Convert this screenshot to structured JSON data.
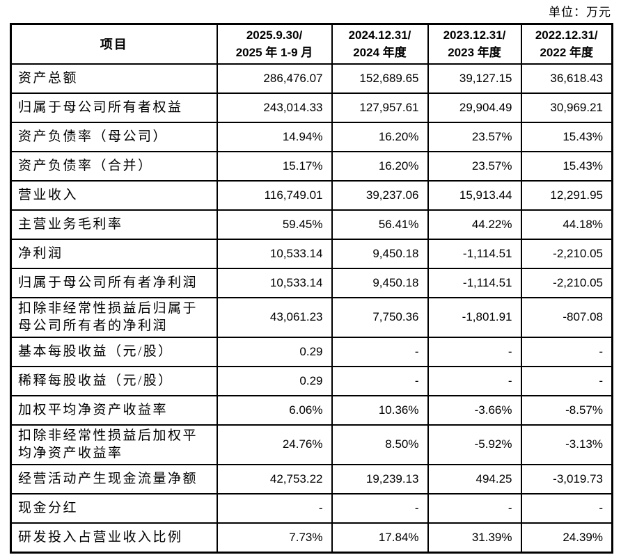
{
  "unit_label": "单位：万元",
  "colors": {
    "text": "#000000",
    "border": "#000000",
    "background": "#ffffff"
  },
  "table": {
    "header": {
      "item": "项目",
      "periods": [
        {
          "line1": "2025.9.30/",
          "line2": "2025 年 1-9 月"
        },
        {
          "line1": "2024.12.31/",
          "line2": "2024 年度"
        },
        {
          "line1": "2023.12.31/",
          "line2": "2023 年度"
        },
        {
          "line1": "2022.12.31/",
          "line2": "2022 年度"
        }
      ]
    },
    "rows": [
      {
        "label": "资产总额",
        "two_line": false,
        "values": [
          "286,476.07",
          "152,689.65",
          "39,127.15",
          "36,618.43"
        ]
      },
      {
        "label": "归属于母公司所有者权益",
        "two_line": false,
        "values": [
          "243,014.33",
          "127,957.61",
          "29,904.49",
          "30,969.21"
        ]
      },
      {
        "label": "资产负债率（母公司）",
        "two_line": false,
        "values": [
          "14.94%",
          "16.20%",
          "23.57%",
          "15.43%"
        ]
      },
      {
        "label": "资产负债率（合并）",
        "two_line": false,
        "values": [
          "15.17%",
          "16.20%",
          "23.57%",
          "15.43%"
        ]
      },
      {
        "label": "营业收入",
        "two_line": false,
        "values": [
          "116,749.01",
          "39,237.06",
          "15,913.44",
          "12,291.95"
        ]
      },
      {
        "label": "主营业务毛利率",
        "two_line": false,
        "values": [
          "59.45%",
          "56.41%",
          "44.22%",
          "44.18%"
        ]
      },
      {
        "label": "净利润",
        "two_line": false,
        "values": [
          "10,533.14",
          "9,450.18",
          "-1,114.51",
          "-2,210.05"
        ]
      },
      {
        "label": "归属于母公司所有者净利润",
        "two_line": false,
        "values": [
          "10,533.14",
          "9,450.18",
          "-1,114.51",
          "-2,210.05"
        ]
      },
      {
        "label": "扣除非经常性损益后归属于母公司所有者的净利润",
        "two_line": true,
        "values": [
          "43,061.23",
          "7,750.36",
          "-1,801.91",
          "-807.08"
        ]
      },
      {
        "label": "基本每股收益（元/股）",
        "two_line": false,
        "values": [
          "0.29",
          "-",
          "-",
          "-"
        ]
      },
      {
        "label": "稀释每股收益（元/股）",
        "two_line": false,
        "values": [
          "0.29",
          "-",
          "-",
          "-"
        ]
      },
      {
        "label": "加权平均净资产收益率",
        "two_line": false,
        "values": [
          "6.06%",
          "10.36%",
          "-3.66%",
          "-8.57%"
        ]
      },
      {
        "label": "扣除非经常性损益后加权平均净资产收益率",
        "two_line": true,
        "values": [
          "24.76%",
          "8.50%",
          "-5.92%",
          "-3.13%"
        ]
      },
      {
        "label": "经营活动产生现金流量净额",
        "two_line": false,
        "values": [
          "42,753.22",
          "19,239.13",
          "494.25",
          "-3,019.73"
        ]
      },
      {
        "label": "现金分红",
        "two_line": false,
        "values": [
          "-",
          "-",
          "-",
          "-"
        ]
      },
      {
        "label": "研发投入占营业收入比例",
        "two_line": false,
        "values": [
          "7.73%",
          "17.84%",
          "31.39%",
          "24.39%"
        ]
      }
    ]
  }
}
